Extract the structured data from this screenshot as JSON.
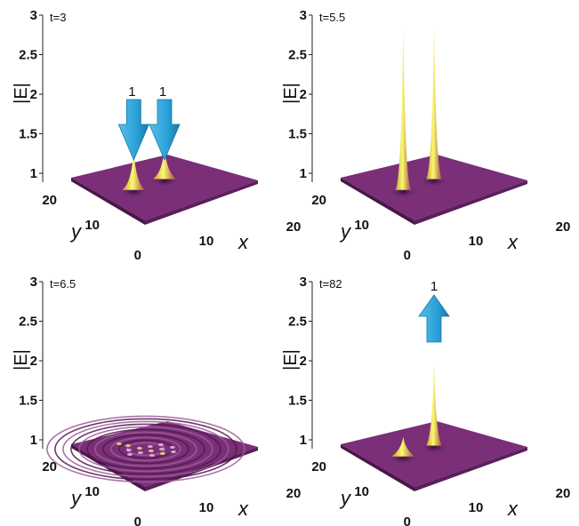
{
  "chart_data": [
    {
      "type": "surface",
      "time_label": "t=3",
      "z_label": "|E|",
      "x_label": "x",
      "y_label": "y",
      "z_ticks": [
        "3",
        "2.5",
        "2",
        "1.5",
        "1"
      ],
      "x_ticks": [
        "10",
        "20"
      ],
      "y_ticks": [
        "20",
        "10",
        "0"
      ],
      "zlim": [
        1,
        3
      ],
      "peaks": [
        {
          "x": 5,
          "y": 11,
          "height": 1.35
        },
        {
          "x": 11,
          "y": 11,
          "height": 1.35
        }
      ],
      "arrows": [
        {
          "direction": "down",
          "label": "1"
        },
        {
          "direction": "down",
          "label": "1"
        }
      ]
    },
    {
      "type": "surface",
      "time_label": "t=5.5",
      "z_label": "|E|",
      "x_label": "x",
      "y_label": "y",
      "z_ticks": [
        "3",
        "2.5",
        "2",
        "1.5",
        "1"
      ],
      "x_ticks": [
        "10",
        "20"
      ],
      "y_ticks": [
        "20",
        "10",
        "0"
      ],
      "zlim": [
        1,
        3
      ],
      "peaks": [
        {
          "x": 5,
          "y": 11,
          "height": 2.9
        },
        {
          "x": 11,
          "y": 11,
          "height": 2.9
        }
      ],
      "arrows": []
    },
    {
      "type": "surface",
      "time_label": "t=6.5",
      "z_label": "|E|",
      "x_label": "x",
      "y_label": "y",
      "z_ticks": [
        "3",
        "2.5",
        "2",
        "1.5",
        "1"
      ],
      "x_ticks": [
        "10",
        "20"
      ],
      "y_ticks": [
        "20",
        "10",
        "0"
      ],
      "zlim": [
        1,
        3
      ],
      "peaks": [],
      "ripples": true,
      "arrows": []
    },
    {
      "type": "surface",
      "time_label": "t=82",
      "z_label": "|E|",
      "x_label": "x",
      "y_label": "y",
      "z_ticks": [
        "3",
        "2.5",
        "2",
        "1.5",
        "1"
      ],
      "x_ticks": [
        "10",
        "20"
      ],
      "y_ticks": [
        "20",
        "10",
        "0"
      ],
      "zlim": [
        1,
        3
      ],
      "peaks": [
        {
          "x": 11,
          "y": 11,
          "height": 2.0
        },
        {
          "x": 5,
          "y": 11,
          "height": 1.08
        }
      ],
      "arrows": [
        {
          "direction": "up",
          "label": "1"
        }
      ]
    }
  ],
  "colors": {
    "surface_top": "#7a2f78",
    "surface_side": "#4a1648",
    "peak_highlight": "#f0f060",
    "arrow": "#2fa6dc"
  }
}
